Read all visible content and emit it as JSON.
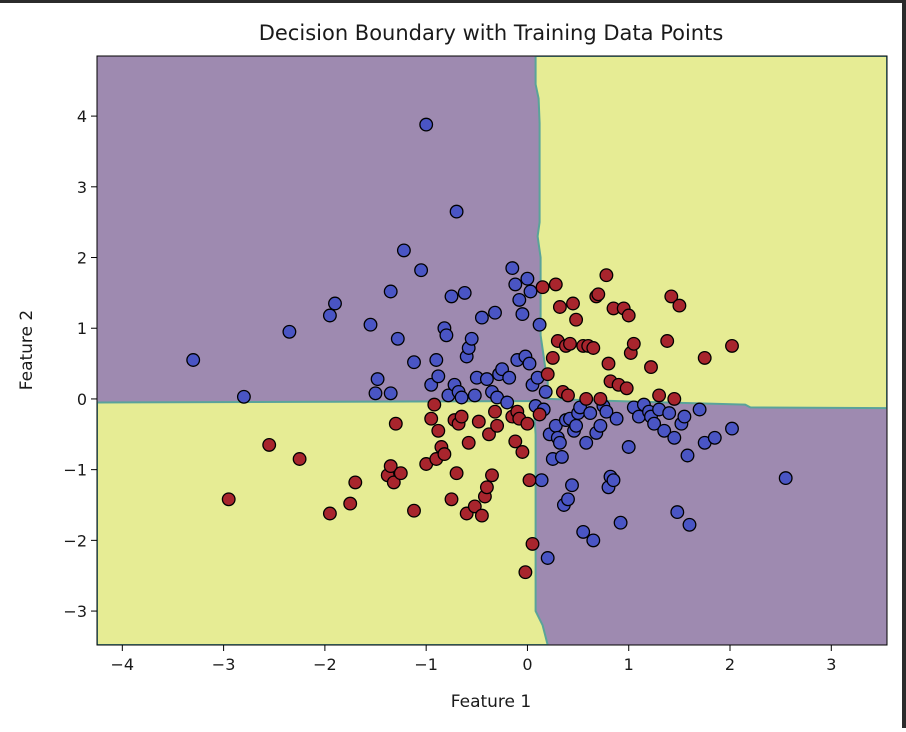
{
  "chart_data": {
    "type": "scatter",
    "title": "Decision Boundary with Training Data Points",
    "xlabel": "Feature 1",
    "ylabel": "Feature 2",
    "xlim": [
      -4.25,
      3.55
    ],
    "ylim": [
      -3.48,
      4.85
    ],
    "xticks": [
      -4,
      -3,
      -2,
      -1,
      0,
      1,
      2,
      3
    ],
    "yticks": [
      -3,
      -2,
      -1,
      0,
      1,
      2,
      3,
      4
    ],
    "xtick_labels": [
      "−4",
      "−3",
      "−2",
      "−1",
      "0",
      "1",
      "2",
      "3"
    ],
    "ytick_labels": [
      "−3",
      "−2",
      "−1",
      "0",
      "1",
      "2",
      "3",
      "4"
    ],
    "grid": false,
    "legend": "none",
    "colors": {
      "region_class0": "#9e8ab0",
      "region_class1": "#e6ec94",
      "boundary_line": "#5aa39a",
      "class0_point": "#4a55c4",
      "class1_point": "#a8252d",
      "point_edge": "#000000"
    },
    "boundary": {
      "class1_regions": [
        [
          [
            0.08,
            4.85
          ],
          [
            0.08,
            4.45
          ],
          [
            0.11,
            4.25
          ],
          [
            0.12,
            3.9
          ],
          [
            0.12,
            2.5
          ],
          [
            0.1,
            2.3
          ],
          [
            0.13,
            2.0
          ],
          [
            0.13,
            0.9
          ],
          [
            0.16,
            0.6
          ],
          [
            0.18,
            0.4
          ],
          [
            0.2,
            0.25
          ],
          [
            0.2,
            0.0
          ],
          [
            0.6,
            -0.02
          ],
          [
            2.15,
            -0.08
          ],
          [
            2.2,
            -0.12
          ],
          [
            3.55,
            -0.13
          ],
          [
            3.55,
            4.85
          ]
        ],
        [
          [
            -4.25,
            -0.05
          ],
          [
            0.06,
            -0.03
          ],
          [
            0.08,
            -0.5
          ],
          [
            0.08,
            -3.0
          ],
          [
            0.15,
            -3.2
          ],
          [
            0.2,
            -3.48
          ],
          [
            -4.25,
            -3.48
          ]
        ]
      ]
    },
    "series": [
      {
        "points": [
          [
            -3.3,
            0.55
          ],
          [
            -2.8,
            0.03
          ],
          [
            -2.35,
            0.95
          ],
          [
            -1.95,
            1.18
          ],
          [
            -1.9,
            1.35
          ],
          [
            -1.55,
            1.05
          ],
          [
            -1.5,
            0.08
          ],
          [
            -1.48,
            0.28
          ],
          [
            -1.35,
            1.52
          ],
          [
            -1.35,
            0.08
          ],
          [
            -1.28,
            0.85
          ],
          [
            -1.22,
            2.1
          ],
          [
            -1.12,
            0.52
          ],
          [
            -1.05,
            1.82
          ],
          [
            -1.0,
            3.88
          ],
          [
            -0.95,
            0.2
          ],
          [
            -0.9,
            0.55
          ],
          [
            -0.88,
            0.32
          ],
          [
            -0.82,
            1.0
          ],
          [
            -0.8,
            0.9
          ],
          [
            -0.78,
            0.05
          ],
          [
            -0.75,
            1.45
          ],
          [
            -0.72,
            0.2
          ],
          [
            -0.7,
            2.65
          ],
          [
            -0.68,
            0.1
          ],
          [
            -0.65,
            0.02
          ],
          [
            -0.62,
            1.5
          ],
          [
            -0.6,
            0.6
          ],
          [
            -0.58,
            0.72
          ],
          [
            -0.55,
            0.85
          ],
          [
            -0.52,
            0.05
          ],
          [
            -0.5,
            0.3
          ],
          [
            -0.45,
            1.15
          ],
          [
            -0.4,
            0.28
          ],
          [
            -0.35,
            0.1
          ],
          [
            -0.32,
            1.22
          ],
          [
            -0.3,
            0.02
          ],
          [
            -0.28,
            0.35
          ],
          [
            -0.25,
            0.42
          ],
          [
            -0.2,
            -0.05
          ],
          [
            -0.18,
            0.3
          ],
          [
            -0.15,
            1.85
          ],
          [
            -0.12,
            1.62
          ],
          [
            -0.1,
            0.55
          ],
          [
            -0.08,
            1.4
          ],
          [
            -0.05,
            1.2
          ],
          [
            -0.02,
            0.6
          ],
          [
            0.0,
            1.7
          ],
          [
            0.02,
            0.5
          ],
          [
            0.03,
            1.52
          ],
          [
            0.05,
            0.2
          ],
          [
            0.08,
            -0.1
          ],
          [
            0.1,
            0.3
          ],
          [
            0.12,
            1.05
          ],
          [
            0.14,
            -1.15
          ],
          [
            0.16,
            -0.15
          ],
          [
            0.18,
            0.1
          ],
          [
            0.2,
            -2.25
          ],
          [
            0.22,
            -0.5
          ],
          [
            0.25,
            -0.85
          ],
          [
            0.28,
            -0.38
          ],
          [
            0.3,
            -0.55
          ],
          [
            0.32,
            -0.62
          ],
          [
            0.34,
            -0.82
          ],
          [
            0.36,
            -1.5
          ],
          [
            0.38,
            -0.3
          ],
          [
            0.4,
            -1.42
          ],
          [
            0.42,
            -0.28
          ],
          [
            0.44,
            -1.22
          ],
          [
            0.46,
            -0.45
          ],
          [
            0.48,
            -0.38
          ],
          [
            0.5,
            -0.2
          ],
          [
            0.52,
            -0.12
          ],
          [
            0.55,
            -1.88
          ],
          [
            0.58,
            -0.62
          ],
          [
            0.62,
            -0.2
          ],
          [
            0.65,
            -2.0
          ],
          [
            0.68,
            -0.48
          ],
          [
            0.72,
            -0.38
          ],
          [
            0.75,
            -0.1
          ],
          [
            0.78,
            -0.18
          ],
          [
            0.8,
            -1.25
          ],
          [
            0.82,
            -1.1
          ],
          [
            0.85,
            -1.15
          ],
          [
            0.88,
            -0.28
          ],
          [
            0.92,
            -1.75
          ],
          [
            1.0,
            -0.68
          ],
          [
            1.05,
            -0.12
          ],
          [
            1.1,
            -0.25
          ],
          [
            1.15,
            -0.08
          ],
          [
            1.2,
            -0.18
          ],
          [
            1.22,
            -0.25
          ],
          [
            1.25,
            -0.35
          ],
          [
            1.3,
            -0.15
          ],
          [
            1.35,
            -0.45
          ],
          [
            1.4,
            -0.2
          ],
          [
            1.45,
            -0.55
          ],
          [
            1.48,
            -1.6
          ],
          [
            1.52,
            -0.35
          ],
          [
            1.55,
            -0.25
          ],
          [
            1.58,
            -0.8
          ],
          [
            1.6,
            -1.78
          ],
          [
            1.7,
            -0.15
          ],
          [
            1.75,
            -0.62
          ],
          [
            1.85,
            -0.55
          ],
          [
            2.02,
            -0.42
          ],
          [
            2.55,
            -1.12
          ]
        ],
        "class": 0
      },
      {
        "points": [
          [
            -2.95,
            -1.42
          ],
          [
            -2.55,
            -0.65
          ],
          [
            -2.25,
            -0.85
          ],
          [
            -1.95,
            -1.62
          ],
          [
            -1.75,
            -1.48
          ],
          [
            -1.7,
            -1.18
          ],
          [
            -1.38,
            -1.08
          ],
          [
            -1.35,
            -0.95
          ],
          [
            -1.32,
            -1.18
          ],
          [
            -1.3,
            -0.35
          ],
          [
            -1.25,
            -1.05
          ],
          [
            -1.12,
            -1.58
          ],
          [
            -1.0,
            -0.92
          ],
          [
            -0.95,
            -0.28
          ],
          [
            -0.92,
            -0.08
          ],
          [
            -0.9,
            -0.85
          ],
          [
            -0.88,
            -0.45
          ],
          [
            -0.85,
            -0.68
          ],
          [
            -0.82,
            -0.78
          ],
          [
            -0.75,
            -1.42
          ],
          [
            -0.72,
            -0.3
          ],
          [
            -0.7,
            -1.05
          ],
          [
            -0.68,
            -0.35
          ],
          [
            -0.65,
            -0.25
          ],
          [
            -0.6,
            -1.62
          ],
          [
            -0.58,
            -0.62
          ],
          [
            -0.52,
            -1.52
          ],
          [
            -0.48,
            -0.32
          ],
          [
            -0.45,
            -1.65
          ],
          [
            -0.42,
            -1.38
          ],
          [
            -0.4,
            -1.25
          ],
          [
            -0.38,
            -0.5
          ],
          [
            -0.35,
            -1.08
          ],
          [
            -0.32,
            -0.18
          ],
          [
            -0.3,
            -0.38
          ],
          [
            -0.15,
            -0.25
          ],
          [
            -0.12,
            -0.6
          ],
          [
            -0.1,
            -0.18
          ],
          [
            -0.08,
            -0.28
          ],
          [
            -0.05,
            -0.75
          ],
          [
            -0.02,
            -2.45
          ],
          [
            0.0,
            -0.35
          ],
          [
            0.02,
            -1.15
          ],
          [
            0.05,
            -2.05
          ],
          [
            0.12,
            -0.22
          ],
          [
            0.15,
            1.58
          ],
          [
            0.2,
            0.35
          ],
          [
            0.25,
            0.58
          ],
          [
            0.28,
            1.62
          ],
          [
            0.3,
            0.82
          ],
          [
            0.32,
            1.3
          ],
          [
            0.35,
            0.1
          ],
          [
            0.38,
            0.75
          ],
          [
            0.4,
            0.05
          ],
          [
            0.42,
            0.78
          ],
          [
            0.45,
            1.35
          ],
          [
            0.48,
            1.12
          ],
          [
            0.55,
            0.75
          ],
          [
            0.58,
            0.0
          ],
          [
            0.6,
            0.75
          ],
          [
            0.65,
            0.72
          ],
          [
            0.68,
            1.45
          ],
          [
            0.7,
            1.48
          ],
          [
            0.72,
            0.0
          ],
          [
            0.78,
            1.75
          ],
          [
            0.8,
            0.5
          ],
          [
            0.82,
            0.25
          ],
          [
            0.85,
            1.28
          ],
          [
            0.9,
            0.2
          ],
          [
            0.95,
            1.28
          ],
          [
            0.98,
            0.15
          ],
          [
            1.0,
            1.18
          ],
          [
            1.02,
            0.65
          ],
          [
            1.05,
            0.78
          ],
          [
            1.22,
            0.45
          ],
          [
            1.3,
            0.05
          ],
          [
            1.38,
            0.82
          ],
          [
            1.42,
            1.45
          ],
          [
            1.45,
            0.0
          ],
          [
            1.5,
            1.32
          ],
          [
            1.75,
            0.58
          ],
          [
            2.02,
            0.75
          ]
        ],
        "class": 1
      }
    ]
  }
}
